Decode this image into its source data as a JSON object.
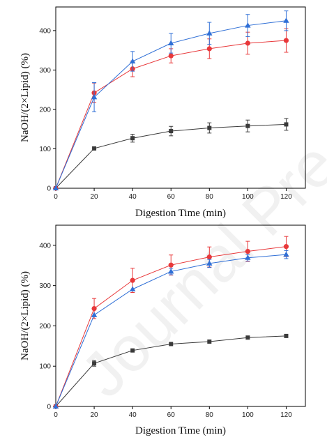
{
  "watermark": "Journal Pre-proof",
  "chart_data": [
    {
      "type": "line",
      "xlabel": "Digestion Time (min)",
      "ylabel": "NaOH/(2×Lipid) (%)",
      "xlim": [
        0,
        130
      ],
      "ylim": [
        0,
        460
      ],
      "xticks": [
        "0",
        "20",
        "40",
        "60",
        "80",
        "100",
        "120"
      ],
      "yticks": [
        "0",
        "100",
        "200",
        "300",
        "400"
      ],
      "x": [
        0,
        20,
        40,
        60,
        80,
        100,
        120
      ],
      "series": [
        {
          "color": "#3a3a3a",
          "marker": "square",
          "values": [
            0,
            101,
            127,
            145,
            153,
            158,
            162
          ],
          "errors": [
            0,
            0,
            10,
            12,
            13,
            15,
            15
          ]
        },
        {
          "color": "#e8383a",
          "marker": "circle",
          "values": [
            0,
            242,
            303,
            336,
            354,
            368,
            375
          ],
          "errors": [
            0,
            25,
            20,
            18,
            25,
            28,
            30
          ]
        },
        {
          "color": "#2f6fd6",
          "marker": "triangle",
          "values": [
            0,
            231,
            322,
            368,
            393,
            413,
            425
          ],
          "errors": [
            0,
            37,
            25,
            25,
            28,
            28,
            25
          ]
        }
      ]
    },
    {
      "type": "line",
      "xlabel": "Digestion Time (min)",
      "ylabel": "NaOH/(2×Lipid) (%)",
      "xlim": [
        0,
        130
      ],
      "ylim": [
        0,
        450
      ],
      "xticks": [
        "0",
        "20",
        "40",
        "60",
        "80",
        "100",
        "120"
      ],
      "yticks": [
        "0",
        "100",
        "200",
        "300",
        "400"
      ],
      "x": [
        0,
        20,
        40,
        60,
        80,
        100,
        120
      ],
      "series": [
        {
          "color": "#3a3a3a",
          "marker": "square",
          "values": [
            0,
            107,
            139,
            155,
            161,
            171,
            175
          ],
          "errors": [
            0,
            7,
            0,
            0,
            0,
            0,
            0
          ]
        },
        {
          "color": "#e8383a",
          "marker": "circle",
          "values": [
            0,
            243,
            313,
            351,
            371,
            385,
            397
          ],
          "errors": [
            0,
            25,
            30,
            25,
            25,
            25,
            25
          ]
        },
        {
          "color": "#2f6fd6",
          "marker": "triangle",
          "values": [
            0,
            227,
            291,
            335,
            355,
            369,
            377
          ],
          "errors": [
            0,
            0,
            0,
            8,
            10,
            8,
            10
          ]
        }
      ]
    }
  ]
}
